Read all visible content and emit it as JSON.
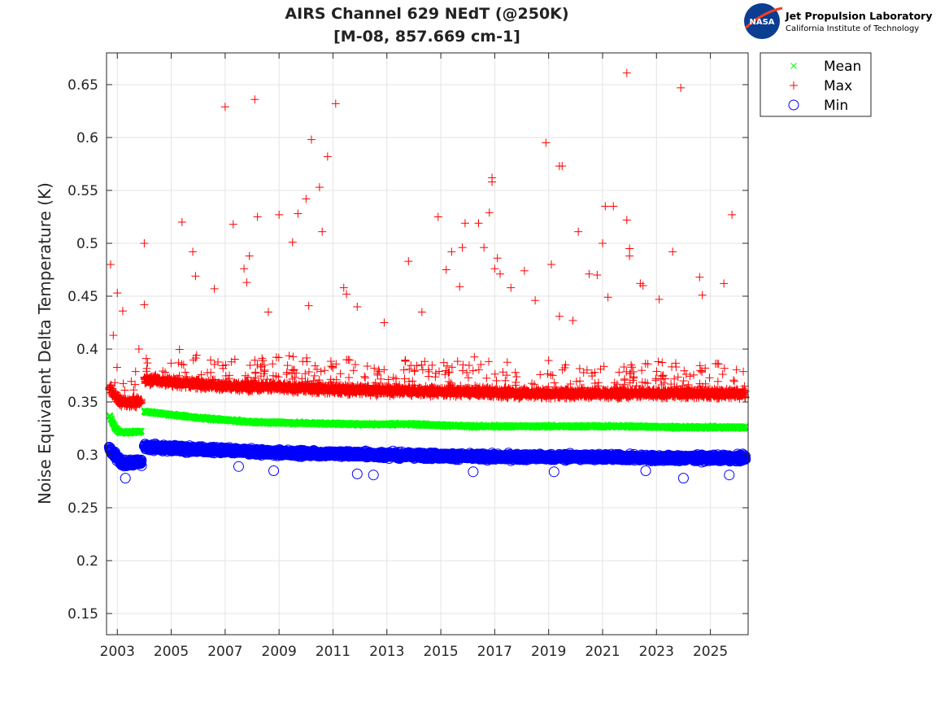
{
  "logo": {
    "nasa_text": "NASA",
    "org_name": "Jet Propulsion Laboratory",
    "org_sub": "California Institute of Technology"
  },
  "chart_data": {
    "type": "scatter",
    "title": "AIRS Channel 629 NEdT (@250K)",
    "subtitle": "[M-08, 857.669 cm-1]",
    "xlabel": "",
    "ylabel": "Noise Equivalent Delta Temperature (K)",
    "xlim": [
      2002.6,
      2026.4
    ],
    "ylim": [
      0.13,
      0.68
    ],
    "xticks": [
      2003,
      2005,
      2007,
      2009,
      2011,
      2013,
      2015,
      2017,
      2019,
      2021,
      2023,
      2025
    ],
    "xtick_labels": [
      "2003",
      "2005",
      "2007",
      "2009",
      "2011",
      "2013",
      "2015",
      "2017",
      "2019",
      "2021",
      "2023",
      "2025"
    ],
    "yticks": [
      0.15,
      0.2,
      0.25,
      0.3,
      0.35,
      0.4,
      0.45,
      0.5,
      0.55,
      0.6,
      0.65
    ],
    "ytick_labels": [
      "0.15",
      "0.2",
      "0.25",
      "0.3",
      "0.35",
      "0.4",
      "0.45",
      "0.5",
      "0.55",
      "0.6",
      "0.65"
    ],
    "grid": true,
    "legend_position": "top-right outside",
    "series": [
      {
        "name": "Mean",
        "marker": "x",
        "color": "#00ff00",
        "segments": [
          {
            "x": [
              2002.7,
              2002.8,
              2002.9,
              2003.0,
              2003.1
            ],
            "y": [
              0.338,
              0.332,
              0.326,
              0.323,
              0.322
            ]
          },
          {
            "x": [
              2003.1,
              2003.9
            ],
            "y": [
              0.321,
              0.322
            ]
          },
          {
            "x": [
              2004.0,
              2005.0,
              2006.0,
              2007.0,
              2008.0,
              2010.0,
              2012.0,
              2014.0,
              2016.0,
              2018.0,
              2020.0,
              2022.0,
              2024.0,
              2026.3
            ],
            "y": [
              0.341,
              0.338,
              0.335,
              0.333,
              0.331,
              0.33,
              0.329,
              0.329,
              0.327,
              0.327,
              0.327,
              0.327,
              0.326,
              0.326
            ]
          }
        ]
      },
      {
        "name": "Max",
        "marker": "+",
        "color": "#ff0000",
        "segments": [
          {
            "x": [
              2002.7,
              2002.9,
              2003.1
            ],
            "y": [
              0.365,
              0.355,
              0.352
            ]
          },
          {
            "x": [
              2003.1,
              2003.9
            ],
            "y": [
              0.35,
              0.35
            ]
          },
          {
            "x": [
              2004.0,
              2005.0,
              2006.0,
              2007.0,
              2009.0,
              2011.0,
              2013.0,
              2015.0,
              2017.0,
              2019.0,
              2021.0,
              2023.0,
              2026.3
            ],
            "y": [
              0.372,
              0.369,
              0.367,
              0.365,
              0.364,
              0.362,
              0.361,
              0.36,
              0.359,
              0.358,
              0.358,
              0.358,
              0.358
            ]
          }
        ],
        "outliers": [
          {
            "x": 2002.75,
            "y": 0.48
          },
          {
            "x": 2002.85,
            "y": 0.413
          },
          {
            "x": 2003.0,
            "y": 0.453
          },
          {
            "x": 2003.2,
            "y": 0.436
          },
          {
            "x": 2003.8,
            "y": 0.4
          },
          {
            "x": 2004.0,
            "y": 0.5
          },
          {
            "x": 2004.0,
            "y": 0.442
          },
          {
            "x": 2005.4,
            "y": 0.52
          },
          {
            "x": 2005.8,
            "y": 0.492
          },
          {
            "x": 2005.9,
            "y": 0.469
          },
          {
            "x": 2006.6,
            "y": 0.457
          },
          {
            "x": 2007.0,
            "y": 0.629
          },
          {
            "x": 2007.3,
            "y": 0.518
          },
          {
            "x": 2007.7,
            "y": 0.476
          },
          {
            "x": 2007.9,
            "y": 0.488
          },
          {
            "x": 2007.8,
            "y": 0.463
          },
          {
            "x": 2008.1,
            "y": 0.636
          },
          {
            "x": 2008.2,
            "y": 0.525
          },
          {
            "x": 2008.6,
            "y": 0.435
          },
          {
            "x": 2009.0,
            "y": 0.527
          },
          {
            "x": 2009.5,
            "y": 0.501
          },
          {
            "x": 2009.7,
            "y": 0.528
          },
          {
            "x": 2010.0,
            "y": 0.542
          },
          {
            "x": 2010.2,
            "y": 0.598
          },
          {
            "x": 2010.1,
            "y": 0.441
          },
          {
            "x": 2010.5,
            "y": 0.553
          },
          {
            "x": 2010.6,
            "y": 0.511
          },
          {
            "x": 2010.8,
            "y": 0.582
          },
          {
            "x": 2011.1,
            "y": 0.632
          },
          {
            "x": 2011.4,
            "y": 0.458
          },
          {
            "x": 2011.5,
            "y": 0.452
          },
          {
            "x": 2011.9,
            "y": 0.44
          },
          {
            "x": 2012.9,
            "y": 0.425
          },
          {
            "x": 2013.8,
            "y": 0.483
          },
          {
            "x": 2014.3,
            "y": 0.435
          },
          {
            "x": 2014.9,
            "y": 0.525
          },
          {
            "x": 2015.2,
            "y": 0.475
          },
          {
            "x": 2015.4,
            "y": 0.492
          },
          {
            "x": 2015.8,
            "y": 0.496
          },
          {
            "x": 2015.9,
            "y": 0.519
          },
          {
            "x": 2015.7,
            "y": 0.459
          },
          {
            "x": 2016.4,
            "y": 0.519
          },
          {
            "x": 2016.6,
            "y": 0.496
          },
          {
            "x": 2016.8,
            "y": 0.529
          },
          {
            "x": 2016.9,
            "y": 0.562
          },
          {
            "x": 2016.9,
            "y": 0.558
          },
          {
            "x": 2017.0,
            "y": 0.476
          },
          {
            "x": 2017.1,
            "y": 0.486
          },
          {
            "x": 2017.2,
            "y": 0.471
          },
          {
            "x": 2017.6,
            "y": 0.458
          },
          {
            "x": 2018.1,
            "y": 0.474
          },
          {
            "x": 2018.5,
            "y": 0.446
          },
          {
            "x": 2018.9,
            "y": 0.595
          },
          {
            "x": 2019.1,
            "y": 0.48
          },
          {
            "x": 2019.4,
            "y": 0.573
          },
          {
            "x": 2019.5,
            "y": 0.573
          },
          {
            "x": 2019.4,
            "y": 0.431
          },
          {
            "x": 2019.9,
            "y": 0.427
          },
          {
            "x": 2020.1,
            "y": 0.511
          },
          {
            "x": 2020.5,
            "y": 0.471
          },
          {
            "x": 2020.8,
            "y": 0.47
          },
          {
            "x": 2021.0,
            "y": 0.5
          },
          {
            "x": 2021.1,
            "y": 0.535
          },
          {
            "x": 2021.4,
            "y": 0.535
          },
          {
            "x": 2021.2,
            "y": 0.449
          },
          {
            "x": 2021.9,
            "y": 0.661
          },
          {
            "x": 2021.9,
            "y": 0.522
          },
          {
            "x": 2022.0,
            "y": 0.495
          },
          {
            "x": 2022.0,
            "y": 0.488
          },
          {
            "x": 2022.4,
            "y": 0.462
          },
          {
            "x": 2022.5,
            "y": 0.46
          },
          {
            "x": 2023.1,
            "y": 0.447
          },
          {
            "x": 2023.6,
            "y": 0.492
          },
          {
            "x": 2023.9,
            "y": 0.647
          },
          {
            "x": 2024.6,
            "y": 0.468
          },
          {
            "x": 2024.7,
            "y": 0.451
          },
          {
            "x": 2025.5,
            "y": 0.462
          },
          {
            "x": 2025.8,
            "y": 0.527
          }
        ]
      },
      {
        "name": "Min",
        "marker": "o",
        "color": "#0000ff",
        "segments": [
          {
            "x": [
              2002.7,
              2002.9,
              2003.1
            ],
            "y": [
              0.306,
              0.3,
              0.295
            ]
          },
          {
            "x": [
              2003.1,
              2003.9
            ],
            "y": [
              0.292,
              0.293
            ]
          },
          {
            "x": [
              2004.0,
              2005.0,
              2006.0,
              2007.0,
              2009.0,
              2011.0,
              2013.0,
              2015.0,
              2017.0,
              2019.0,
              2021.0,
              2023.0,
              2026.3
            ],
            "y": [
              0.308,
              0.306,
              0.305,
              0.304,
              0.302,
              0.301,
              0.3,
              0.299,
              0.298,
              0.298,
              0.298,
              0.297,
              0.297
            ]
          }
        ],
        "outliers": [
          {
            "x": 2003.3,
            "y": 0.278
          },
          {
            "x": 2007.5,
            "y": 0.289
          },
          {
            "x": 2008.8,
            "y": 0.285
          },
          {
            "x": 2011.9,
            "y": 0.282
          },
          {
            "x": 2012.5,
            "y": 0.281
          },
          {
            "x": 2016.2,
            "y": 0.284
          },
          {
            "x": 2019.2,
            "y": 0.284
          },
          {
            "x": 2022.6,
            "y": 0.285
          },
          {
            "x": 2024.0,
            "y": 0.278
          },
          {
            "x": 2025.7,
            "y": 0.281
          }
        ]
      }
    ]
  }
}
